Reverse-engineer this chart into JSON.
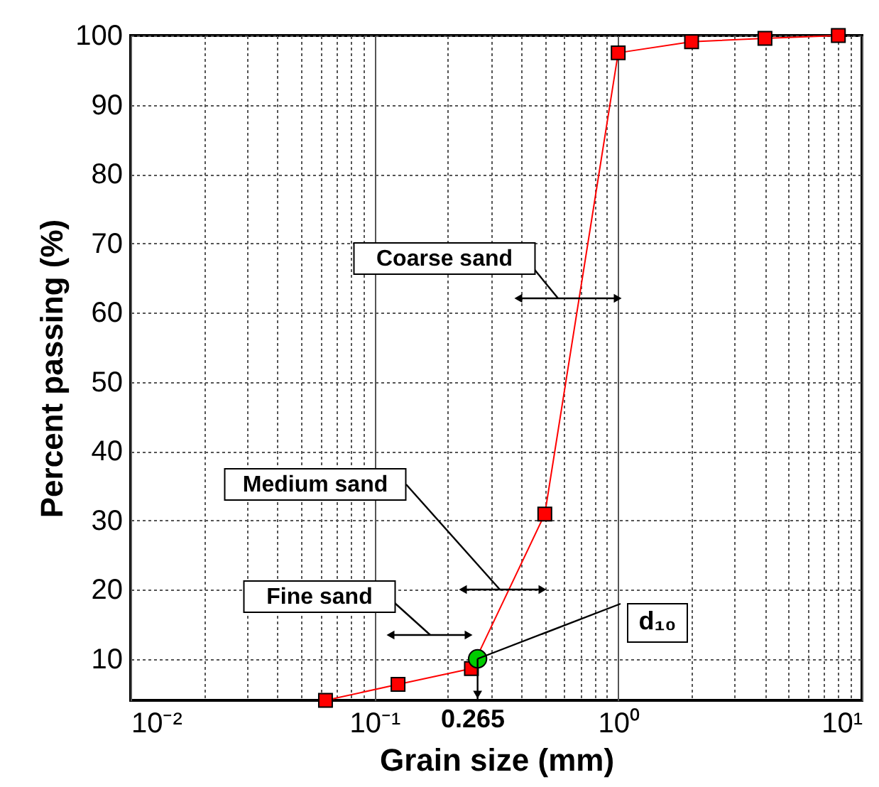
{
  "chart_data": {
    "type": "line",
    "xlabel": "Grain size (mm)",
    "ylabel": "Percent passing (%)",
    "series": [
      {
        "x": [
          0.063,
          0.125,
          0.25,
          0.5,
          1.0,
          2.0,
          4.0,
          8.0
        ],
        "values": [
          4,
          6.3,
          8.6,
          30.9,
          97.5,
          99.1,
          99.6,
          100
        ],
        "color": "#ff0000",
        "marker": "square"
      },
      {
        "type": "scatter",
        "x": [
          0.265
        ],
        "values": [
          10
        ],
        "color": "#00cc00",
        "marker": "circle"
      }
    ],
    "log": "x",
    "xlim": [
      0.01,
      10
    ],
    "ylim": [
      4,
      100
    ],
    "xticks": [
      {
        "value": 0.01,
        "label": "10⁻²"
      },
      {
        "value": 0.02,
        "label": null
      },
      {
        "value": 0.03,
        "label": null
      },
      {
        "value": 0.04,
        "label": null
      },
      {
        "value": 0.05,
        "label": null
      },
      {
        "value": 0.06,
        "label": null
      },
      {
        "value": 0.07,
        "label": null
      },
      {
        "value": 0.08,
        "label": null
      },
      {
        "value": 0.09,
        "label": null
      },
      {
        "value": 0.1,
        "label": "10⁻¹"
      },
      {
        "value": 0.2,
        "label": null
      },
      {
        "value": 0.3,
        "label": null
      },
      {
        "value": 0.4,
        "label": null
      },
      {
        "value": 0.5,
        "label": null
      },
      {
        "value": 0.6,
        "label": null
      },
      {
        "value": 0.7,
        "label": null
      },
      {
        "value": 0.8,
        "label": null
      },
      {
        "value": 0.9,
        "label": null
      },
      {
        "value": 1,
        "label": "10⁰"
      },
      {
        "value": 2,
        "label": null
      },
      {
        "value": 3,
        "label": null
      },
      {
        "value": 4,
        "label": null
      },
      {
        "value": 5,
        "label": null
      },
      {
        "value": 6,
        "label": null
      },
      {
        "value": 7,
        "label": null
      },
      {
        "value": 8,
        "label": null
      },
      {
        "value": 9,
        "label": null
      },
      {
        "value": 10,
        "label": "10¹"
      }
    ],
    "yticks": [
      10,
      20,
      30,
      40,
      50,
      60,
      70,
      80,
      90,
      100
    ],
    "grid": true,
    "annotations": [
      "Coarse sand",
      "Medium sand",
      "Fine sand",
      {
        "text": "d₁₀",
        "x": 0.265,
        "y": 10
      },
      "0.265"
    ]
  }
}
